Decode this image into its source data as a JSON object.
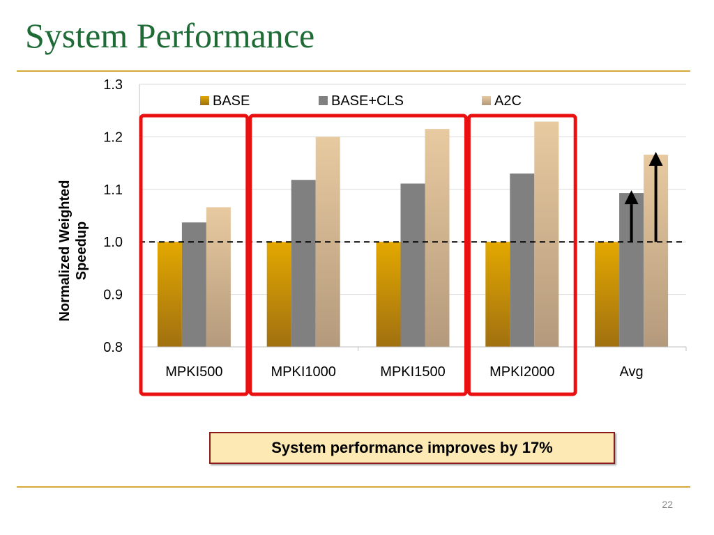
{
  "slide": {
    "title": "System Performance",
    "callout": "System performance improves by 17%",
    "page_number": "22"
  },
  "colors": {
    "title": "#1e6b36",
    "rule": "#d4a93a",
    "base_top": "#e3a800",
    "base_bottom": "#a07010",
    "base_cls": "#808080",
    "a2c_top": "#e8caa0",
    "a2c_bottom": "#b49a7c",
    "highlight_box": "#e81010",
    "arrow": "#000000",
    "grid": "#d9d9d9",
    "baseline": "#000000"
  },
  "chart_data": {
    "type": "bar",
    "categories": [
      "MPKI500",
      "MPKI1000",
      "MPKI1500",
      "MPKI2000",
      "Avg"
    ],
    "series": [
      {
        "name": "BASE",
        "values": [
          1.0,
          1.0,
          1.0,
          1.0,
          1.0
        ]
      },
      {
        "name": "BASE+CLS",
        "values": [
          1.037,
          1.118,
          1.111,
          1.13,
          1.093
        ]
      },
      {
        "name": "A2C",
        "values": [
          1.066,
          1.2,
          1.215,
          1.229,
          1.166
        ]
      }
    ],
    "title": "",
    "xlabel": "",
    "ylabel": "Normalized Weighted Speedup",
    "ylim": [
      0.8,
      1.3
    ],
    "yticks": [
      0.8,
      0.9,
      1.0,
      1.1,
      1.2,
      1.3
    ],
    "ytick_labels": [
      "0.8",
      "0.9",
      "1.0",
      "1.1",
      "1.2",
      "1.3"
    ],
    "reference_line": 1.0,
    "grid": true,
    "legend_position": "top",
    "highlighted_groups": [
      [
        0
      ],
      [
        1,
        2
      ],
      [
        3
      ]
    ],
    "arrows": [
      {
        "category": "Avg",
        "series": "BASE+CLS",
        "from": 1.0,
        "to": 1.093
      },
      {
        "category": "Avg",
        "series": "A2C",
        "from": 1.0,
        "to": 1.166
      }
    ]
  }
}
